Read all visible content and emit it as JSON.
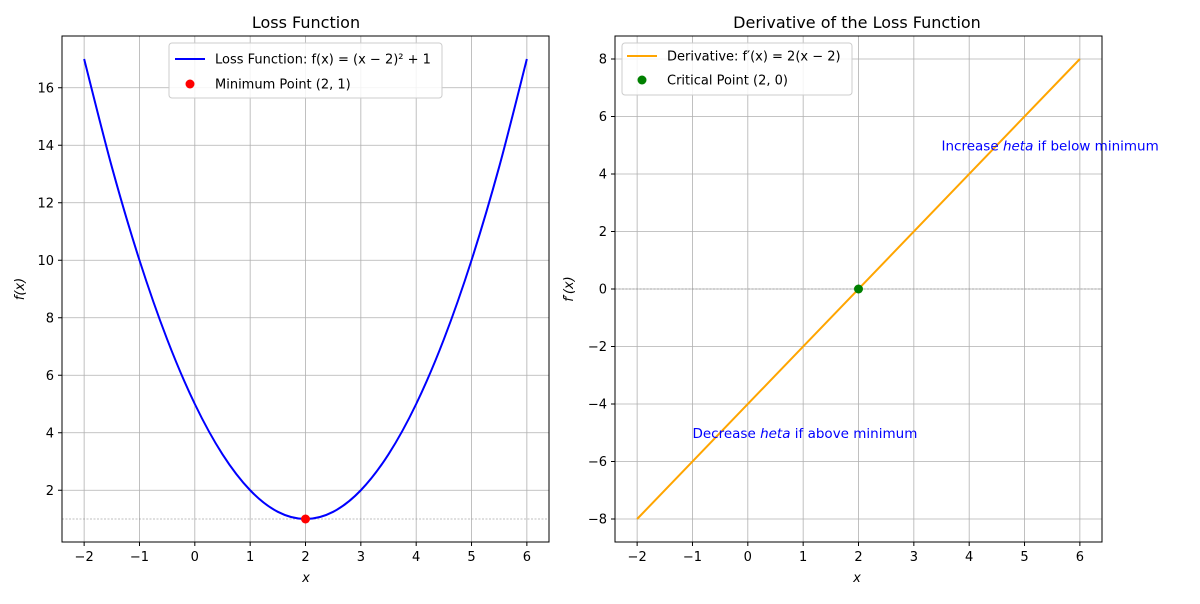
{
  "chart_data": [
    {
      "type": "line",
      "title": "Loss Function",
      "xlabel": "x",
      "ylabel": "f(x)",
      "xlim": [
        -2.4,
        6.4
      ],
      "ylim": [
        0.2,
        17.8
      ],
      "xticks": [
        -2,
        -1,
        0,
        1,
        2,
        3,
        4,
        5,
        6
      ],
      "xtick_labels": [
        "−2",
        "−1",
        "0",
        "1",
        "2",
        "3",
        "4",
        "5",
        "6"
      ],
      "yticks": [
        2,
        4,
        6,
        8,
        10,
        12,
        14,
        16
      ],
      "ytick_labels": [
        "2",
        "4",
        "6",
        "8",
        "10",
        "12",
        "14",
        "16"
      ],
      "grid": true,
      "legend_position": "top-center",
      "series": [
        {
          "name": "Loss Function: f(x) = (x − 2)² + 1",
          "color": "#0000ff",
          "x": [
            -2,
            -1.5,
            -1,
            -0.5,
            0,
            0.5,
            1,
            1.5,
            2,
            2.5,
            3,
            3.5,
            4,
            4.5,
            5,
            5.5,
            6
          ],
          "y": [
            17,
            13.25,
            10,
            7.25,
            5,
            3.25,
            2,
            1.25,
            1,
            1.25,
            2,
            3.25,
            5,
            7.25,
            10,
            13.25,
            17
          ]
        }
      ],
      "points": [
        {
          "name": "Minimum Point (2, 1)",
          "color": "#ff0000",
          "x": 2,
          "y": 1
        }
      ],
      "hlines": [
        {
          "y": 1,
          "color": "#808080"
        }
      ],
      "annotations": []
    },
    {
      "type": "line",
      "title": "Derivative of the Loss Function",
      "xlabel": "x",
      "ylabel": "f′(x)",
      "xlim": [
        -2.4,
        6.4
      ],
      "ylim": [
        -8.8,
        8.8
      ],
      "xticks": [
        -2,
        -1,
        0,
        1,
        2,
        3,
        4,
        5,
        6
      ],
      "xtick_labels": [
        "−2",
        "−1",
        "0",
        "1",
        "2",
        "3",
        "4",
        "5",
        "6"
      ],
      "yticks": [
        -8,
        -6,
        -4,
        -2,
        0,
        2,
        4,
        6,
        8
      ],
      "ytick_labels": [
        "−8",
        "−6",
        "−4",
        "−2",
        "0",
        "2",
        "4",
        "6",
        "8"
      ],
      "grid": true,
      "legend_position": "top-left",
      "series": [
        {
          "name": "Derivative: f′(x) = 2(x − 2)",
          "color": "#ffa500",
          "x": [
            -2,
            6
          ],
          "y": [
            -8,
            8
          ]
        }
      ],
      "points": [
        {
          "name": "Critical Point (2, 0)",
          "color": "#008000",
          "x": 2,
          "y": 0
        }
      ],
      "hlines": [
        {
          "y": 0,
          "color": "#808080"
        }
      ],
      "annotations": [
        {
          "text_before": "Increase ",
          "text_italic": "heta",
          "text_after": " if below minimum",
          "x": 3.5,
          "y": 5,
          "color": "#0000ff"
        },
        {
          "text_before": "Decrease ",
          "text_italic": "heta",
          "text_after": " if above minimum",
          "x": -1,
          "y": -5,
          "color": "#0000ff"
        }
      ]
    }
  ]
}
